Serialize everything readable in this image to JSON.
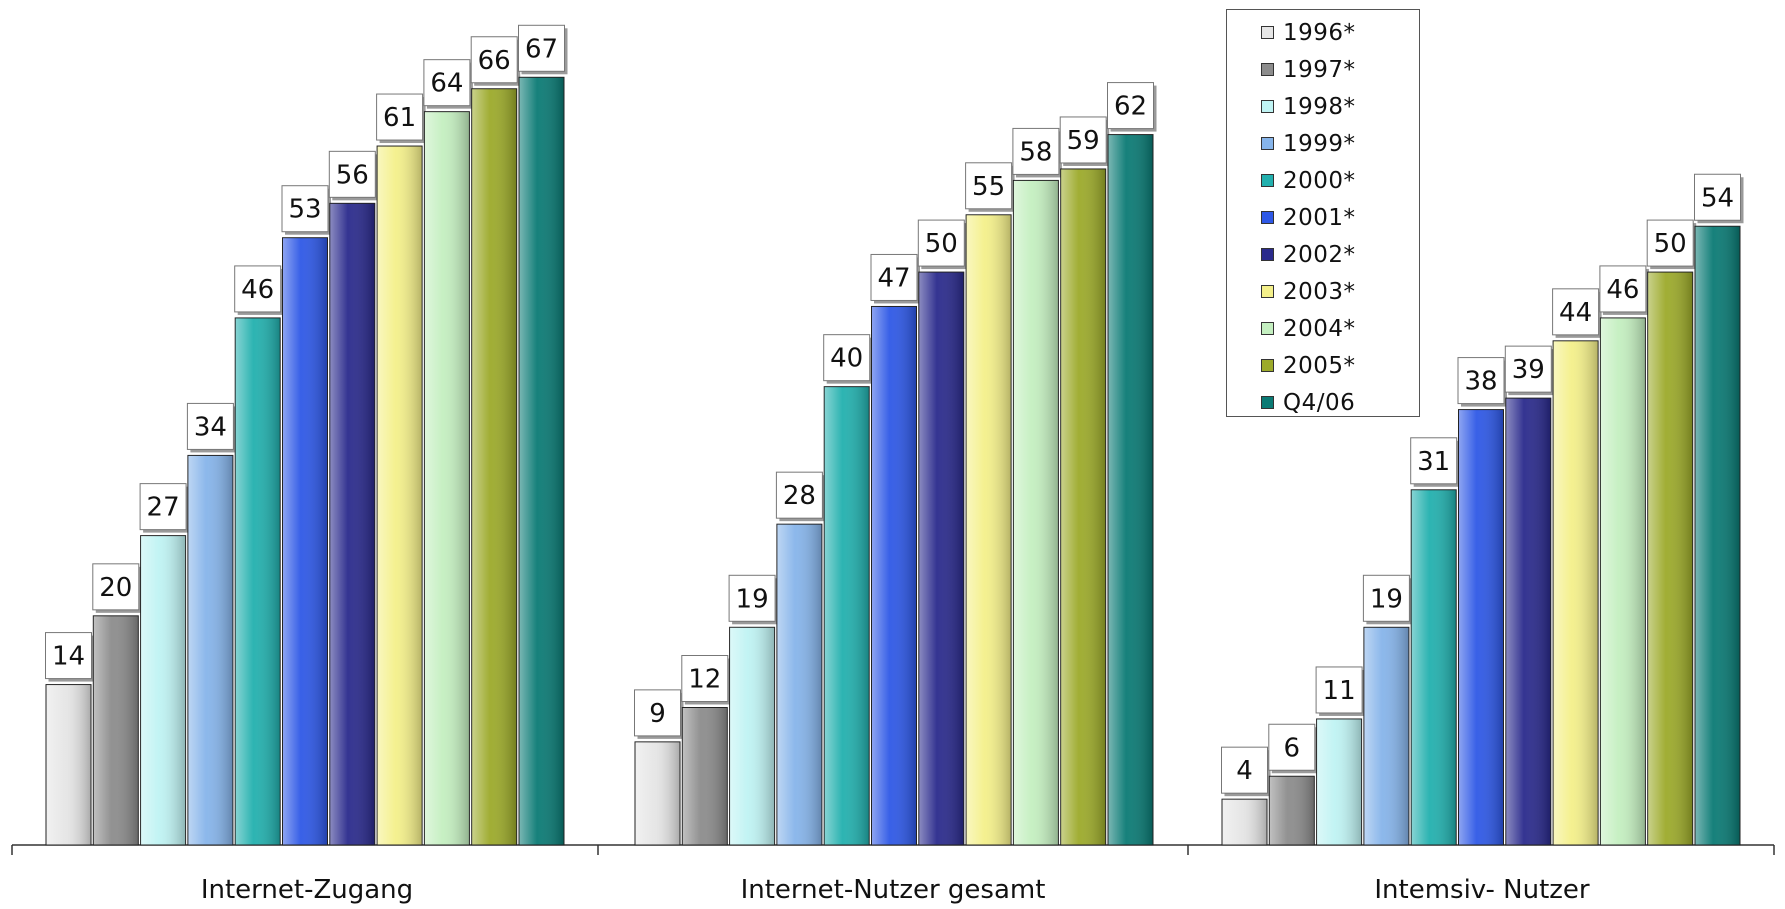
{
  "chart_data": {
    "type": "bar",
    "categories": [
      "Internet-Zugang",
      "Internet-Nutzer gesamt",
      "Intemsiv- Nutzer"
    ],
    "series": [
      {
        "name": "1996*",
        "values": [
          14,
          9,
          4
        ],
        "color": "#e6e6e6"
      },
      {
        "name": "1997*",
        "values": [
          20,
          12,
          6
        ],
        "color": "#8c8c8c"
      },
      {
        "name": "1998*",
        "values": [
          27,
          19,
          11
        ],
        "color": "#bff3f3"
      },
      {
        "name": "1999*",
        "values": [
          34,
          28,
          19
        ],
        "color": "#86b4ea"
      },
      {
        "name": "2000*",
        "values": [
          46,
          40,
          31
        ],
        "color": "#22b0ae"
      },
      {
        "name": "2001*",
        "values": [
          53,
          47,
          38
        ],
        "color": "#2e58e6"
      },
      {
        "name": "2002*",
        "values": [
          56,
          50,
          39
        ],
        "color": "#2a2a8c"
      },
      {
        "name": "2003*",
        "values": [
          61,
          55,
          44
        ],
        "color": "#f4f08a"
      },
      {
        "name": "2004*",
        "values": [
          64,
          58,
          46
        ],
        "color": "#c4efc0"
      },
      {
        "name": "2005*",
        "values": [
          66,
          59,
          50
        ],
        "color": "#9caa2a"
      },
      {
        "name": "Q4/06",
        "values": [
          67,
          62,
          54
        ],
        "color": "#0a7a74"
      }
    ],
    "ylim": [
      0,
      72
    ],
    "xlabel": "",
    "ylabel": "",
    "title": "",
    "grid": false,
    "legend_position": "top-right",
    "data_labels": true
  }
}
